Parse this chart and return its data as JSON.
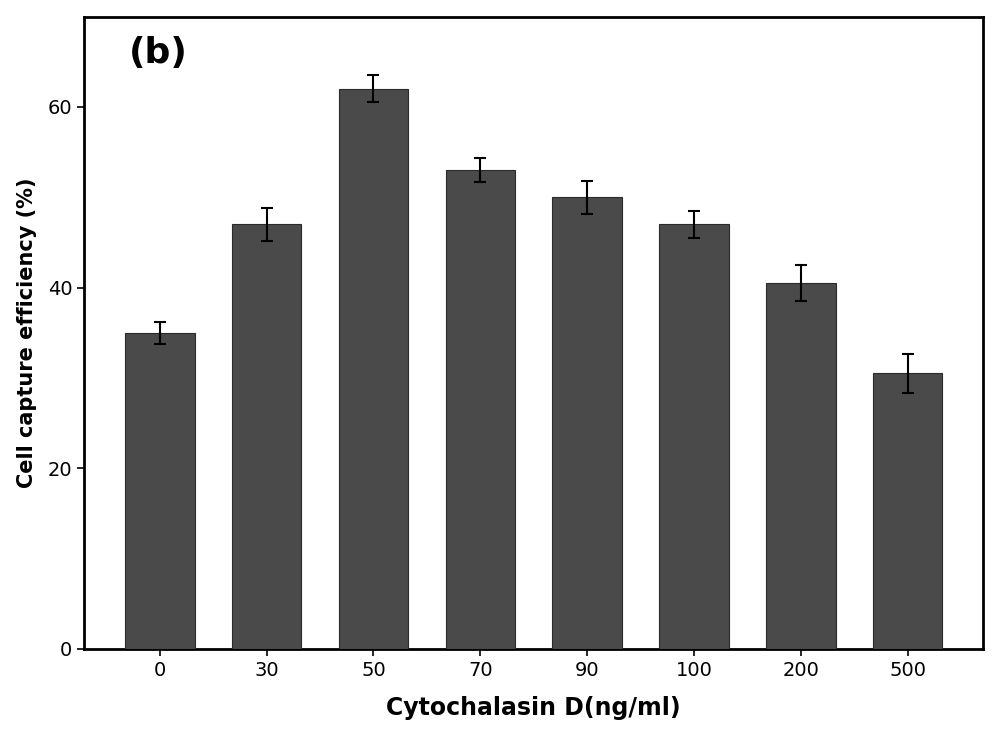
{
  "categories": [
    "0",
    "30",
    "50",
    "70",
    "90",
    "100",
    "200",
    "500"
  ],
  "values": [
    35,
    47,
    62,
    53,
    50,
    47,
    40.5,
    30.5
  ],
  "errors": [
    1.2,
    1.8,
    1.5,
    1.3,
    1.8,
    1.5,
    2.0,
    2.2
  ],
  "bar_color": "#4a4a4a",
  "bar_edgecolor": "#2a2a2a",
  "ylabel": "Cell capture efficiency (%)",
  "xlabel": "Cytochalasin D(ng/ml)",
  "xlabel_fontsize": 17,
  "ylabel_fontsize": 15,
  "tick_fontsize": 14,
  "label_fontweight": "bold",
  "ylim": [
    0,
    70
  ],
  "yticks": [
    0,
    20,
    40,
    60
  ],
  "annotation": "(b)",
  "annotation_fontsize": 26,
  "background_color": "#ffffff",
  "bar_width": 0.65,
  "spine_linewidth": 2.0
}
